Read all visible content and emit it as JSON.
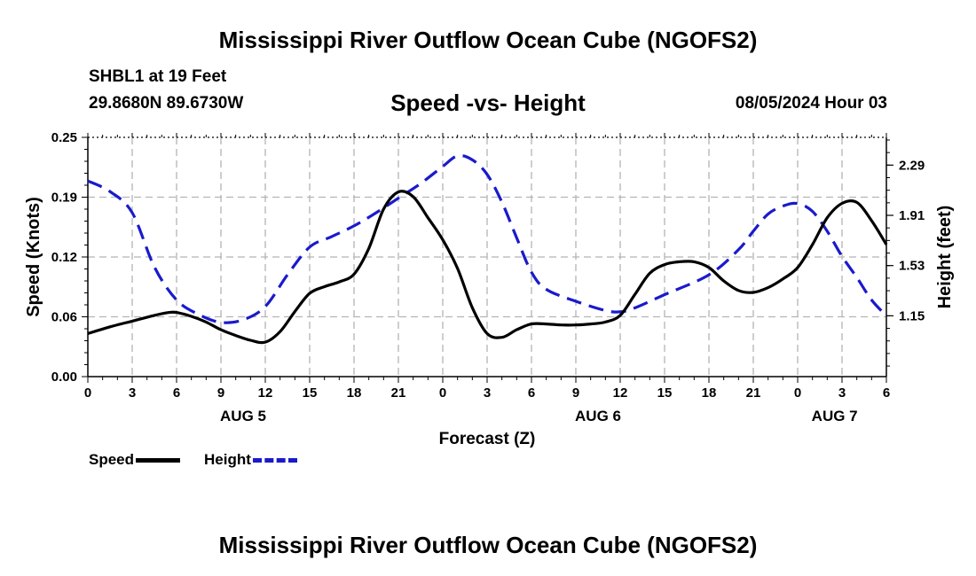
{
  "page": {
    "title_top": "Mississippi River Outflow Ocean Cube (NGOFS2)",
    "title_bottom": "Mississippi River Outflow Ocean Cube (NGOFS2)",
    "station": "SHBL1 at 19 Feet",
    "coords": "29.8680N  89.6730W",
    "subtitle": "Speed -vs- Height",
    "timestamp": "08/05/2024 Hour 03"
  },
  "colors": {
    "speed": "#000000",
    "height": "#1a1acc",
    "grid": "#b4b4b4"
  },
  "chart_data": {
    "type": "line",
    "xlabel": "Forecast (Z)",
    "ylabel_left": "Speed (Knots)",
    "ylabel_right": "Height (feet)",
    "x_range": [
      0,
      54
    ],
    "x_ticks": [
      0,
      3,
      6,
      9,
      12,
      15,
      18,
      21,
      24,
      27,
      30,
      33,
      36,
      39,
      42,
      45,
      48,
      51,
      54
    ],
    "x_tick_labels": [
      "0",
      "3",
      "6",
      "9",
      "12",
      "15",
      "18",
      "21",
      "0",
      "3",
      "6",
      "9",
      "12",
      "15",
      "18",
      "21",
      "0",
      "3",
      "6"
    ],
    "day_labels": [
      {
        "x": 10.5,
        "label": "AUG 5"
      },
      {
        "x": 34.5,
        "label": "AUG 6"
      },
      {
        "x": 50.5,
        "label": "AUG 7"
      }
    ],
    "y_left": {
      "range": [
        0,
        0.25
      ],
      "ticks": [
        0.0,
        0.0625,
        0.125,
        0.1875,
        0.25
      ],
      "tick_labels": [
        "0.00",
        "0.06",
        "0.12",
        "0.19",
        "0.25"
      ]
    },
    "y_right": {
      "range": [
        0.69,
        2.5
      ],
      "ticks": [
        1.15,
        1.53,
        1.91,
        2.29
      ],
      "tick_labels": [
        "1.15",
        "1.53",
        "1.91",
        "2.29"
      ]
    },
    "series": [
      {
        "name": "Speed",
        "axis": "left",
        "style": "solid",
        "points": [
          [
            0,
            0.045
          ],
          [
            1.5,
            0.052
          ],
          [
            3,
            0.058
          ],
          [
            4.5,
            0.064
          ],
          [
            5.5,
            0.067
          ],
          [
            6,
            0.067
          ],
          [
            7,
            0.063
          ],
          [
            8,
            0.057
          ],
          [
            9,
            0.049
          ],
          [
            10,
            0.043
          ],
          [
            11,
            0.038
          ],
          [
            12,
            0.036
          ],
          [
            13,
            0.047
          ],
          [
            14,
            0.068
          ],
          [
            15,
            0.087
          ],
          [
            16,
            0.094
          ],
          [
            17,
            0.099
          ],
          [
            18,
            0.107
          ],
          [
            19,
            0.134
          ],
          [
            20,
            0.175
          ],
          [
            21,
            0.193
          ],
          [
            22,
            0.188
          ],
          [
            23,
            0.166
          ],
          [
            24,
            0.143
          ],
          [
            25,
            0.113
          ],
          [
            26,
            0.072
          ],
          [
            27,
            0.045
          ],
          [
            28,
            0.041
          ],
          [
            29,
            0.049
          ],
          [
            30,
            0.055
          ],
          [
            31,
            0.055
          ],
          [
            32,
            0.054
          ],
          [
            33,
            0.054
          ],
          [
            34,
            0.055
          ],
          [
            35,
            0.057
          ],
          [
            36,
            0.064
          ],
          [
            37,
            0.086
          ],
          [
            38,
            0.108
          ],
          [
            39,
            0.117
          ],
          [
            40,
            0.12
          ],
          [
            41,
            0.12
          ],
          [
            42,
            0.114
          ],
          [
            43,
            0.1
          ],
          [
            44,
            0.09
          ],
          [
            45,
            0.088
          ],
          [
            46,
            0.093
          ],
          [
            47,
            0.102
          ],
          [
            48,
            0.114
          ],
          [
            49,
            0.138
          ],
          [
            50,
            0.166
          ],
          [
            51,
            0.181
          ],
          [
            52,
            0.182
          ],
          [
            53,
            0.163
          ],
          [
            54,
            0.138
          ]
        ]
      },
      {
        "name": "Height",
        "axis": "right",
        "style": "dashed",
        "points": [
          [
            0,
            2.17
          ],
          [
            1.5,
            2.09
          ],
          [
            3,
            1.93
          ],
          [
            4.5,
            1.52
          ],
          [
            6,
            1.27
          ],
          [
            7.5,
            1.16
          ],
          [
            9,
            1.1
          ],
          [
            10.5,
            1.12
          ],
          [
            12,
            1.22
          ],
          [
            13.5,
            1.46
          ],
          [
            15,
            1.67
          ],
          [
            16.5,
            1.75
          ],
          [
            18,
            1.83
          ],
          [
            19.5,
            1.93
          ],
          [
            21,
            2.04
          ],
          [
            22.5,
            2.15
          ],
          [
            24,
            2.28
          ],
          [
            25,
            2.36
          ],
          [
            26,
            2.33
          ],
          [
            27,
            2.22
          ],
          [
            28,
            2.01
          ],
          [
            29,
            1.74
          ],
          [
            30,
            1.48
          ],
          [
            31,
            1.35
          ],
          [
            33,
            1.26
          ],
          [
            35,
            1.19
          ],
          [
            36,
            1.18
          ],
          [
            37,
            1.21
          ],
          [
            39,
            1.31
          ],
          [
            42,
            1.46
          ],
          [
            44,
            1.65
          ],
          [
            45,
            1.79
          ],
          [
            46,
            1.92
          ],
          [
            47,
            1.98
          ],
          [
            48,
            2.0
          ],
          [
            49,
            1.94
          ],
          [
            50,
            1.79
          ],
          [
            51,
            1.6
          ],
          [
            52,
            1.44
          ],
          [
            53,
            1.27
          ],
          [
            54,
            1.15
          ]
        ]
      }
    ]
  }
}
